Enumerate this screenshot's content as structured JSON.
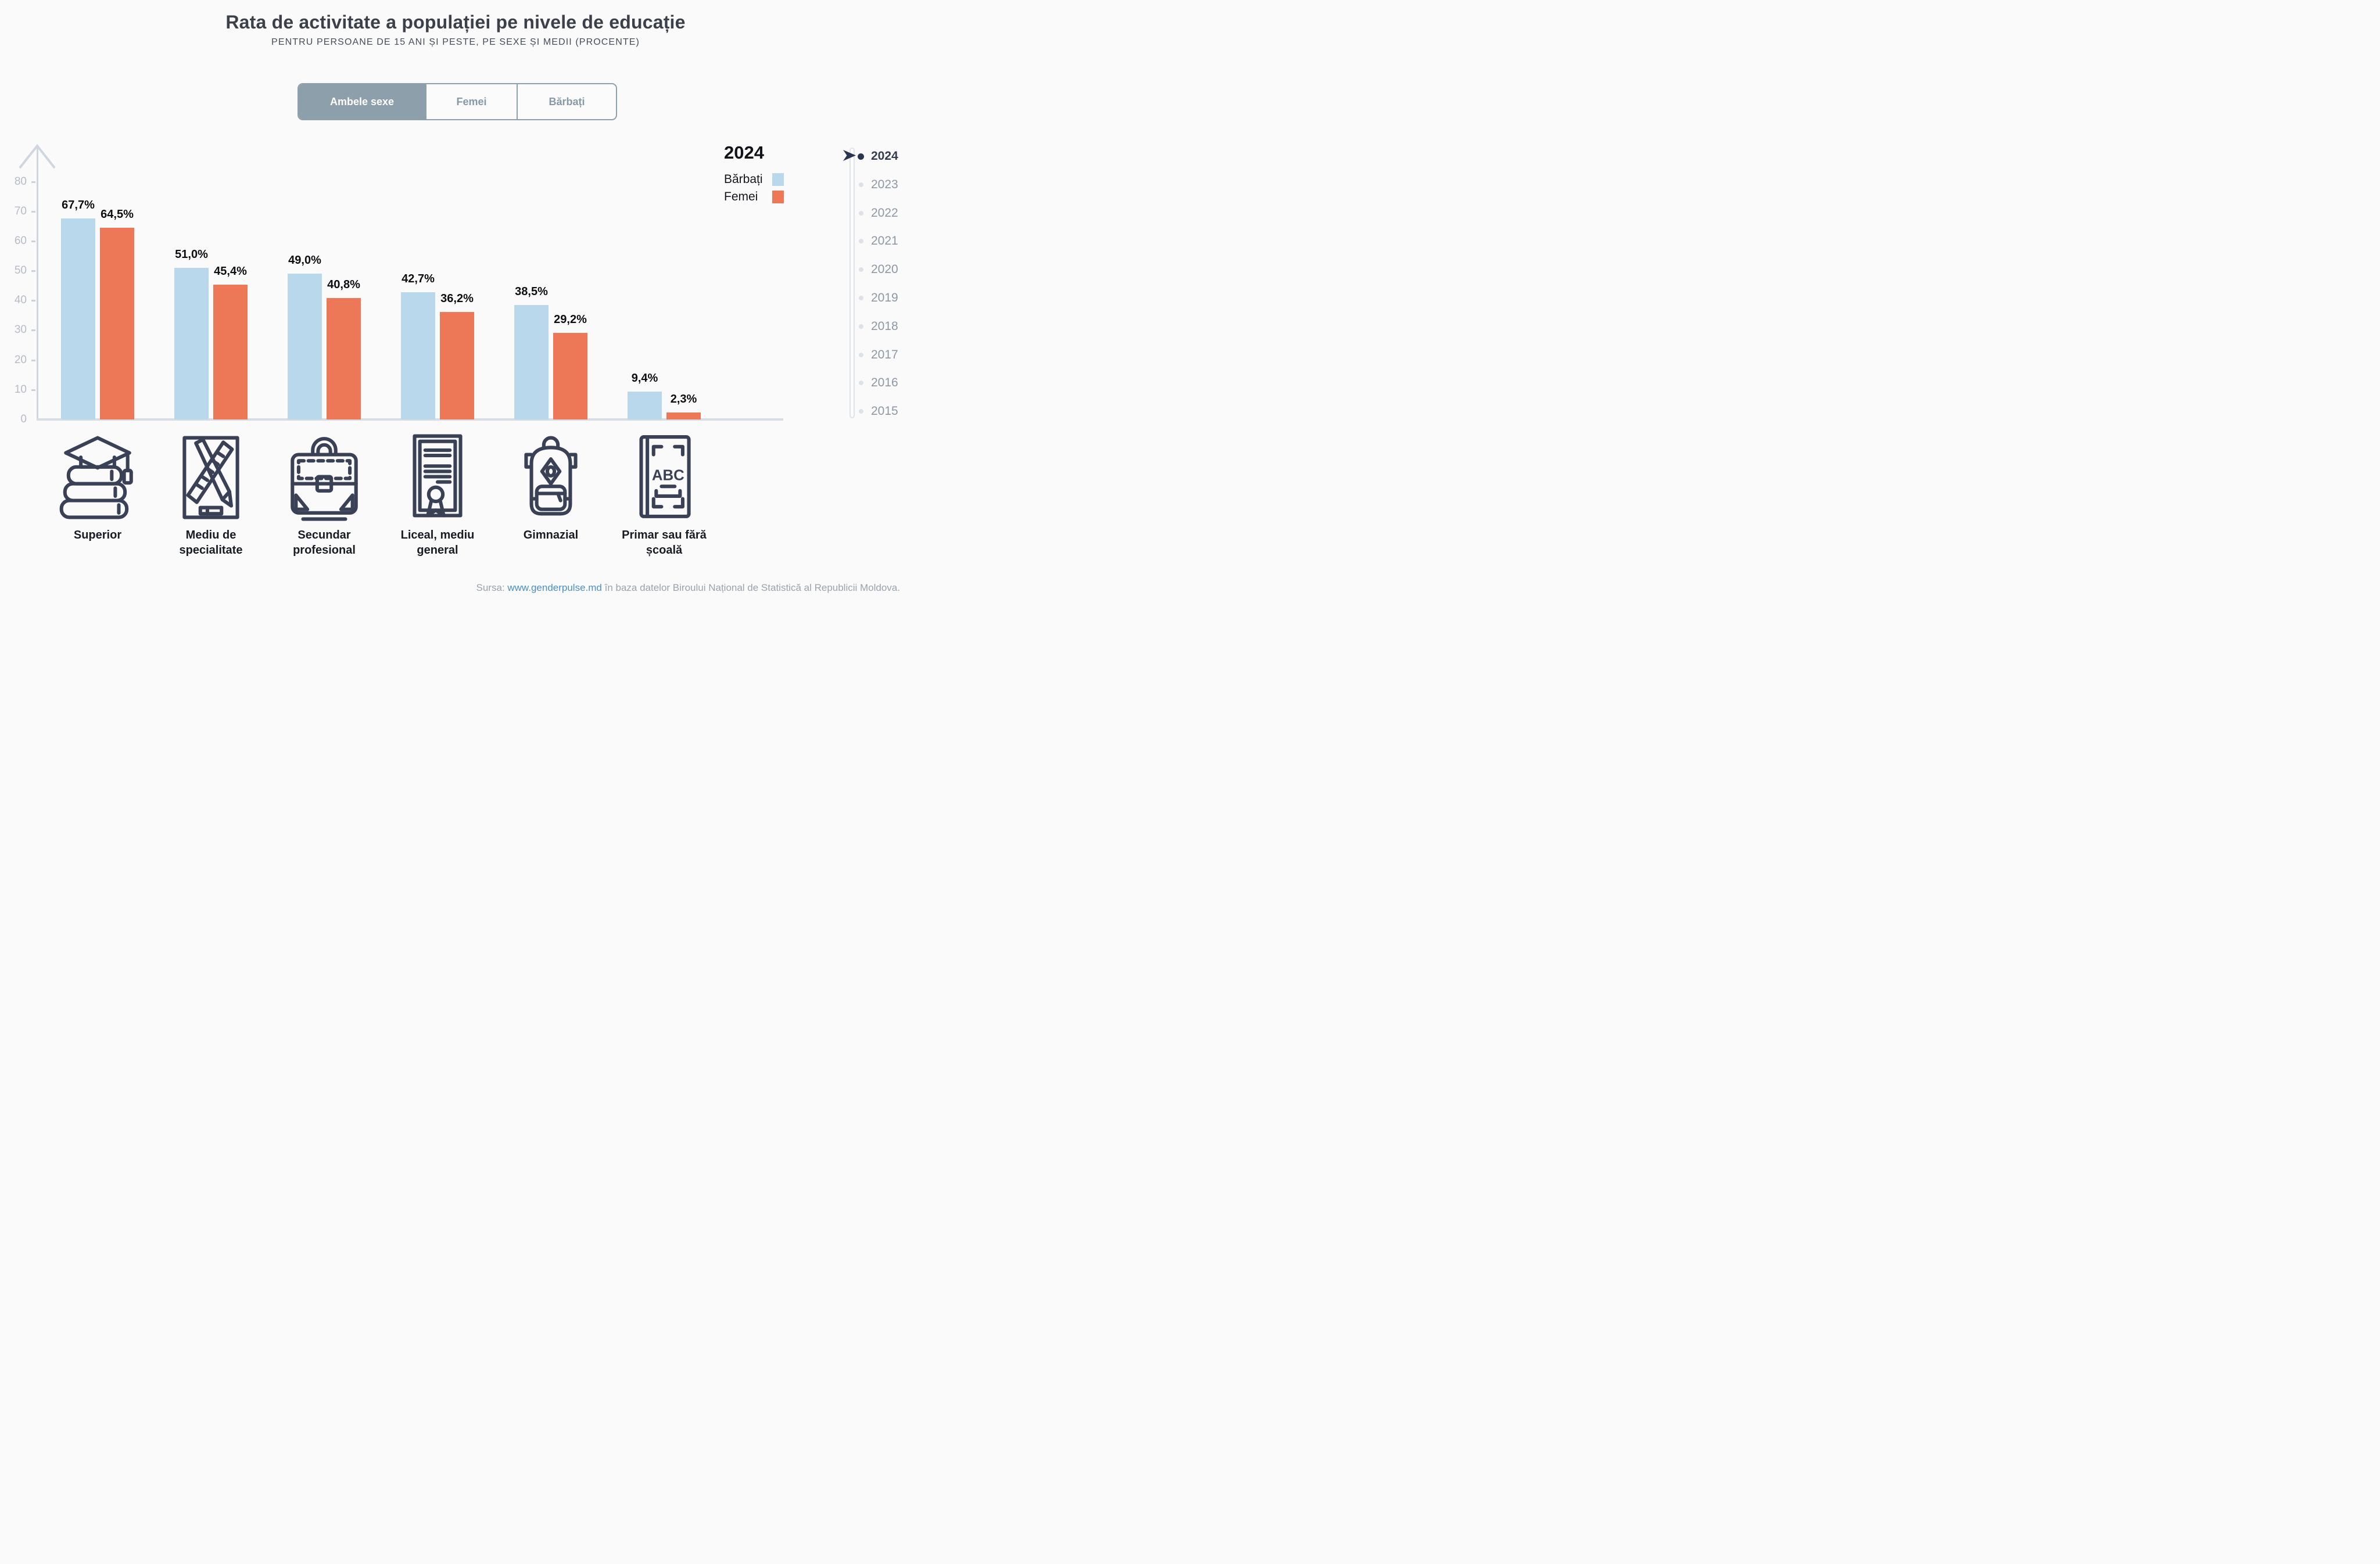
{
  "header": {
    "title": "Rata de activitate a populației pe nivele de educație",
    "subtitle": "PENTRU PERSOANE DE 15 ANI ȘI PESTE, PE SEXE ȘI MEDII (PROCENTE)"
  },
  "tabs": {
    "options": [
      {
        "label": "Ambele sexe",
        "active": true
      },
      {
        "label": "Femei",
        "active": false
      },
      {
        "label": "Bărbați",
        "active": false
      }
    ]
  },
  "legend": {
    "year": "2024",
    "items": [
      {
        "label": "Bărbați",
        "color": "#bad8ec"
      },
      {
        "label": "Femei",
        "color": "#ed7858"
      }
    ]
  },
  "timeline": {
    "active_year": "2024",
    "years": [
      "2024",
      "2023",
      "2022",
      "2021",
      "2020",
      "2019",
      "2018",
      "2017",
      "2016",
      "2015"
    ]
  },
  "chart_data": {
    "type": "bar",
    "title": "Rata de activitate a populației pe nivele de educație",
    "subtitle": "Pentru persoane de 15 ani și peste, pe sexe și medii (procente)",
    "xlabel": "",
    "ylabel": "",
    "ylim": [
      0,
      80
    ],
    "yticks": [
      0,
      10,
      20,
      30,
      40,
      50,
      60,
      70,
      80
    ],
    "grid": false,
    "legend_position": "top-right",
    "categories": [
      "Superior",
      "Mediu de specialitate",
      "Secundar profesional",
      "Liceal, mediu general",
      "Gimnazial",
      "Primar sau fără școală"
    ],
    "category_icons": [
      "graduation-books-icon",
      "pencil-ruler-icon",
      "briefcase-icon",
      "diploma-icon",
      "backpack-icon",
      "abc-book-icon"
    ],
    "series": [
      {
        "name": "Bărbați",
        "color": "#bad8ec",
        "values": [
          67.7,
          51.0,
          49.0,
          42.7,
          38.5,
          9.4
        ],
        "labels": [
          "67,7%",
          "51,0%",
          "49,0%",
          "42,7%",
          "38,5%",
          "9,4%"
        ]
      },
      {
        "name": "Femei",
        "color": "#ed7858",
        "values": [
          64.5,
          45.4,
          40.8,
          36.2,
          29.2,
          2.3
        ],
        "labels": [
          "64,5%",
          "45,4%",
          "40,8%",
          "36,2%",
          "29,2%",
          "2,3%"
        ]
      }
    ]
  },
  "icons": {
    "abc_book_text": "ABC"
  },
  "colors": {
    "tab_active_bg": "#8c9faa",
    "axis": "#d0d6dd",
    "timeline_active": "#2a3550",
    "link": "#4a8fc5"
  },
  "footer": {
    "prefix": "Sursa: ",
    "link": "www.genderpulse.md",
    "suffix": " în baza datelor Biroului Național de Statistică al Republicii Moldova."
  }
}
